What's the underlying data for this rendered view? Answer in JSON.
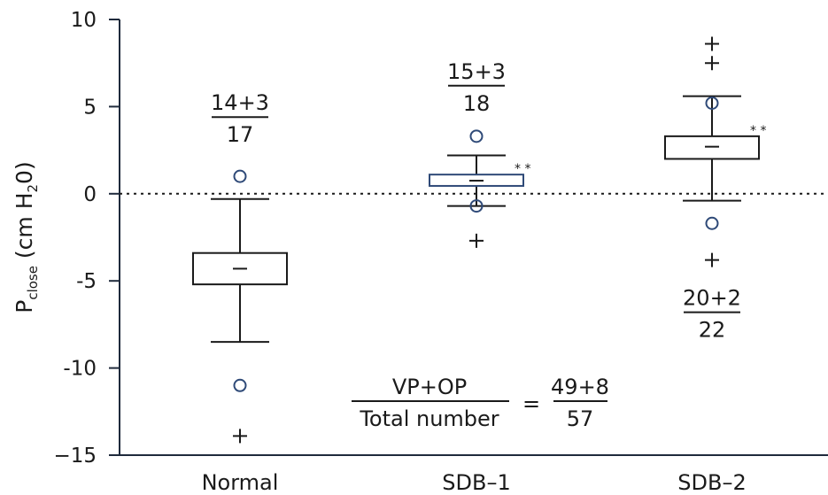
{
  "chart_data": {
    "type": "box",
    "ylabel": {
      "main": "P",
      "sub": "close",
      "unit_open": " (cm H",
      "unit_sub": "2",
      "unit_close": "0)"
    },
    "ylim": [
      -15,
      10
    ],
    "yticks": [
      10,
      5,
      0,
      -5,
      -10,
      -15
    ],
    "ytick_labels": [
      "10",
      "5",
      "0",
      "-5",
      "-10",
      "−15"
    ],
    "reference_line": 0,
    "categories": [
      "Normal",
      "SDB–1",
      "SDB–2"
    ],
    "boxes": [
      {
        "name": "Normal",
        "q1": -5.2,
        "median": -4.3,
        "q3": -3.4,
        "whisker_low": -8.5,
        "whisker_high": -0.3,
        "circles": [
          1.0,
          -11.0
        ],
        "pluses": [
          -13.9
        ],
        "stars": "",
        "color": "#1a1a1a",
        "fraction": {
          "num": "14+3",
          "den": "17",
          "y": 4.4
        }
      },
      {
        "name": "SDB–1",
        "q1": 0.45,
        "median": 0.75,
        "q3": 1.1,
        "whisker_low": -0.7,
        "whisker_high": 2.2,
        "circles": [
          3.3,
          -0.7
        ],
        "pluses": [
          -2.7
        ],
        "stars": "* *",
        "color": "#2f4a78",
        "fraction": {
          "num": "15+3",
          "den": "18",
          "y": 6.2
        }
      },
      {
        "name": "SDB–2",
        "q1": 2.0,
        "median": 2.7,
        "q3": 3.3,
        "whisker_low": -0.4,
        "whisker_high": 5.6,
        "circles": [
          5.2,
          -1.7
        ],
        "pluses": [
          8.6,
          7.5,
          -3.8
        ],
        "stars": "* *",
        "color": "#1a1a1a",
        "fraction": {
          "num": "20+2",
          "den": "22",
          "y": -6.8
        }
      }
    ],
    "summary": {
      "num": "VP+OP",
      "den": "Total number",
      "equals": "=",
      "rnum": "49+8",
      "rden": "57",
      "y": -11.9
    }
  },
  "colors": {
    "axis": "#1f2a3c",
    "ink": "#1a1a1a",
    "marker": "#2f4a78"
  }
}
